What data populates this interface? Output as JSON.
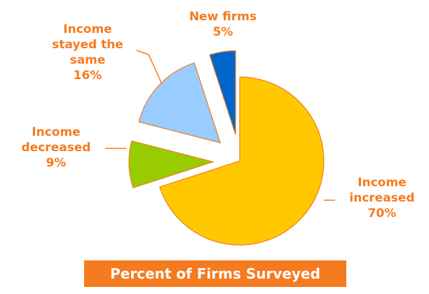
{
  "chart_data": {
    "type": "pie",
    "title": "Percent of Firms Surveyed",
    "categories": [
      "Income increased",
      "Income decreased",
      "Income stayed the same",
      "New firms"
    ],
    "values": [
      70,
      9,
      16,
      5
    ],
    "value_labels": [
      "70%",
      "9%",
      "16%",
      "5%"
    ],
    "colors": [
      "#ffc800",
      "#99cc00",
      "#99ccff",
      "#0066cc"
    ]
  }
}
